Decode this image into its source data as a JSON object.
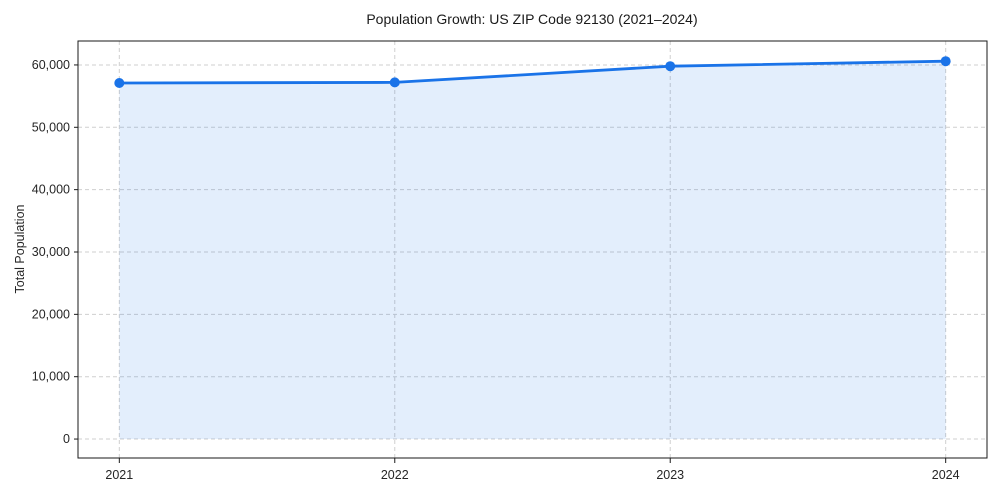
{
  "chart_data": {
    "type": "area",
    "title": "Population Growth: US ZIP Code 92130 (2021–2024)",
    "xlabel": "",
    "ylabel": "Total Population",
    "x": [
      2021,
      2022,
      2023,
      2024
    ],
    "series": [
      {
        "name": "Total Population",
        "values": [
          57100,
          57200,
          59800,
          60600
        ]
      }
    ],
    "xtick_labels": [
      "2021",
      "2022",
      "2023",
      "2024"
    ],
    "ytick_values": [
      0,
      10000,
      20000,
      30000,
      40000,
      50000,
      60000
    ],
    "ytick_labels": [
      "0",
      "10,000",
      "20,000",
      "30,000",
      "40,000",
      "50,000",
      "60,000"
    ],
    "xlim": [
      2020.85,
      2024.15
    ],
    "ylim": [
      -3040,
      63840
    ],
    "fill_baseline": 0,
    "grid": true,
    "grid_style": "dashed",
    "legend": "none",
    "colors": {
      "line": "#1a73e8",
      "marker": "#1a73e8",
      "fill": "#1a73e8",
      "fill_opacity": 0.12,
      "grid": "#cfcfcf",
      "spine": "#1a1a1a",
      "title_text": "#1a1a1a",
      "tick_text": "#262626",
      "background": "#ffffff"
    }
  }
}
